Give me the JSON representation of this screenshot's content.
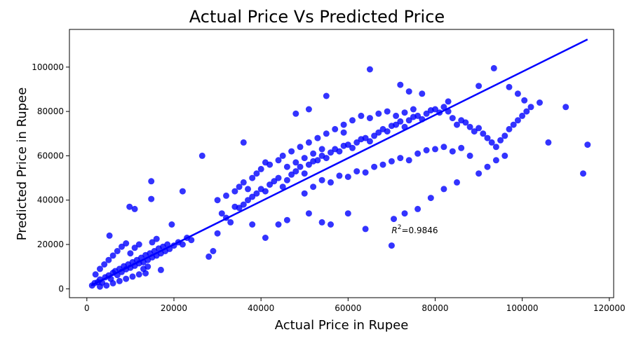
{
  "chart_data": {
    "type": "scatter",
    "title": "Actual Price  Vs  Predicted Price",
    "xlabel": "Actual Price in Rupee",
    "ylabel": "Predicted Price in Rupee",
    "xlim": [
      -4000,
      121000
    ],
    "ylim": [
      -4000,
      117000
    ],
    "xticks": [
      0,
      20000,
      40000,
      60000,
      80000,
      100000,
      120000
    ],
    "yticks": [
      0,
      20000,
      40000,
      60000,
      80000,
      100000
    ],
    "xtick_labels": [
      "0",
      "20000",
      "40000",
      "60000",
      "80000",
      "100000",
      "120000"
    ],
    "ytick_labels": [
      "0",
      "20000",
      "40000",
      "60000",
      "80000",
      "100000"
    ],
    "grid": false,
    "color": "#0000ff",
    "fit_line": {
      "x": [
        1000,
        115000
      ],
      "y": [
        1500,
        112500
      ]
    },
    "annotation": {
      "label_prefix": "R",
      "label_sup": "2",
      "label_suffix": "=0.9846",
      "x": 70000,
      "y": 25000
    },
    "points": [
      [
        1200,
        1500
      ],
      [
        1800,
        2600
      ],
      [
        2500,
        3000
      ],
      [
        3000,
        4200
      ],
      [
        3500,
        2800
      ],
      [
        4200,
        5200
      ],
      [
        5000,
        6000
      ],
      [
        5500,
        4500
      ],
      [
        6000,
        7200
      ],
      [
        6500,
        8000
      ],
      [
        7000,
        6200
      ],
      [
        7500,
        9000
      ],
      [
        8000,
        7600
      ],
      [
        8500,
        10200
      ],
      [
        9000,
        8800
      ],
      [
        9500,
        11000
      ],
      [
        10000,
        9500
      ],
      [
        10500,
        12000
      ],
      [
        11000,
        10400
      ],
      [
        11500,
        13000
      ],
      [
        12000,
        11500
      ],
      [
        12500,
        14000
      ],
      [
        13000,
        12000
      ],
      [
        13500,
        15200
      ],
      [
        14000,
        13000
      ],
      [
        14500,
        16000
      ],
      [
        15000,
        14200
      ],
      [
        15500,
        17000
      ],
      [
        16000,
        15000
      ],
      [
        16500,
        18200
      ],
      [
        17000,
        16000
      ],
      [
        17500,
        19000
      ],
      [
        18000,
        17000
      ],
      [
        18500,
        20000
      ],
      [
        19000,
        18000
      ],
      [
        20000,
        19500
      ],
      [
        21000,
        21000
      ],
      [
        22000,
        20000
      ],
      [
        23000,
        23000
      ],
      [
        24000,
        22000
      ],
      [
        2000,
        6500
      ],
      [
        3000,
        9000
      ],
      [
        4000,
        11000
      ],
      [
        5000,
        13000
      ],
      [
        6000,
        15000
      ],
      [
        7000,
        17000
      ],
      [
        8000,
        19000
      ],
      [
        9000,
        20500
      ],
      [
        10000,
        16000
      ],
      [
        11000,
        18500
      ],
      [
        12000,
        20000
      ],
      [
        13000,
        9000
      ],
      [
        14000,
        10000
      ],
      [
        15000,
        21000
      ],
      [
        16000,
        22500
      ],
      [
        17000,
        8500
      ],
      [
        3000,
        1000
      ],
      [
        4500,
        1500
      ],
      [
        6000,
        2500
      ],
      [
        7500,
        3500
      ],
      [
        9000,
        4500
      ],
      [
        10500,
        5500
      ],
      [
        12000,
        6500
      ],
      [
        13500,
        7000
      ],
      [
        5200,
        24000
      ],
      [
        9800,
        37000
      ],
      [
        11000,
        36000
      ],
      [
        14800,
        48500
      ],
      [
        14800,
        40500
      ],
      [
        19500,
        29000
      ],
      [
        26500,
        60000
      ],
      [
        22000,
        44000
      ],
      [
        28000,
        14500
      ],
      [
        29000,
        17000
      ],
      [
        30000,
        25000
      ],
      [
        31000,
        34000
      ],
      [
        32000,
        32000
      ],
      [
        33000,
        30000
      ],
      [
        34000,
        37000
      ],
      [
        35000,
        36500
      ],
      [
        36000,
        38000
      ],
      [
        37000,
        40000
      ],
      [
        38000,
        41500
      ],
      [
        39000,
        43000
      ],
      [
        40000,
        45000
      ],
      [
        41000,
        44000
      ],
      [
        42000,
        47000
      ],
      [
        43000,
        48500
      ],
      [
        44000,
        50000
      ],
      [
        45000,
        46000
      ],
      [
        46000,
        49000
      ],
      [
        47000,
        51500
      ],
      [
        48000,
        53000
      ],
      [
        49000,
        55000
      ],
      [
        50000,
        52000
      ],
      [
        51000,
        56000
      ],
      [
        52000,
        57500
      ],
      [
        53000,
        58000
      ],
      [
        54000,
        60000
      ],
      [
        55000,
        59000
      ],
      [
        56000,
        61500
      ],
      [
        57000,
        63000
      ],
      [
        58000,
        62000
      ],
      [
        59000,
        64500
      ],
      [
        60000,
        65000
      ],
      [
        61000,
        63500
      ],
      [
        62000,
        66000
      ],
      [
        63000,
        67500
      ],
      [
        64000,
        68000
      ],
      [
        65000,
        66500
      ],
      [
        66000,
        69000
      ],
      [
        67000,
        70500
      ],
      [
        68000,
        72000
      ],
      [
        69000,
        71000
      ],
      [
        70000,
        73500
      ],
      [
        71000,
        74000
      ],
      [
        72000,
        75500
      ],
      [
        73000,
        73000
      ],
      [
        74000,
        76000
      ],
      [
        75000,
        77500
      ],
      [
        76000,
        78000
      ],
      [
        77000,
        76500
      ],
      [
        78000,
        79000
      ],
      [
        79000,
        80500
      ],
      [
        80000,
        81000
      ],
      [
        81000,
        79500
      ],
      [
        82000,
        82000
      ],
      [
        83000,
        80000
      ],
      [
        84000,
        77000
      ],
      [
        85000,
        74000
      ],
      [
        86000,
        76000
      ],
      [
        87000,
        75000
      ],
      [
        88000,
        73000
      ],
      [
        89000,
        71000
      ],
      [
        90000,
        72500
      ],
      [
        91000,
        70000
      ],
      [
        92000,
        68000
      ],
      [
        93000,
        66000
      ],
      [
        94000,
        64000
      ],
      [
        95000,
        67000
      ],
      [
        96000,
        69000
      ],
      [
        97000,
        72000
      ],
      [
        98000,
        74000
      ],
      [
        99000,
        76000
      ],
      [
        100000,
        78000
      ],
      [
        101000,
        80000
      ],
      [
        102000,
        82000
      ],
      [
        104000,
        84000
      ],
      [
        106000,
        66000
      ],
      [
        110000,
        82000
      ],
      [
        115000,
        65000
      ],
      [
        114000,
        52000
      ],
      [
        36000,
        66000
      ],
      [
        41000,
        57000
      ],
      [
        48000,
        79000
      ],
      [
        51000,
        81000
      ],
      [
        55000,
        87000
      ],
      [
        59000,
        70500
      ],
      [
        65000,
        99000
      ],
      [
        72000,
        92000
      ],
      [
        74000,
        89000
      ],
      [
        77000,
        88000
      ],
      [
        83000,
        84500
      ],
      [
        90000,
        91500
      ],
      [
        93500,
        99500
      ],
      [
        97000,
        91000
      ],
      [
        99000,
        88000
      ],
      [
        100500,
        85000
      ],
      [
        38000,
        29000
      ],
      [
        41000,
        23000
      ],
      [
        44000,
        29000
      ],
      [
        46000,
        31000
      ],
      [
        51000,
        34000
      ],
      [
        54000,
        30000
      ],
      [
        56000,
        29000
      ],
      [
        60000,
        34000
      ],
      [
        64000,
        27000
      ],
      [
        70000,
        19500
      ],
      [
        70500,
        31500
      ],
      [
        73000,
        34000
      ],
      [
        76000,
        36000
      ],
      [
        79000,
        41000
      ],
      [
        82000,
        45000
      ],
      [
        85000,
        48000
      ],
      [
        50000,
        43000
      ],
      [
        52000,
        46000
      ],
      [
        54000,
        49000
      ],
      [
        56000,
        48000
      ],
      [
        58000,
        51000
      ],
      [
        60000,
        50500
      ],
      [
        62000,
        53000
      ],
      [
        64000,
        52500
      ],
      [
        66000,
        55000
      ],
      [
        68000,
        56000
      ],
      [
        70000,
        57500
      ],
      [
        72000,
        59000
      ],
      [
        74000,
        58000
      ],
      [
        76000,
        61000
      ],
      [
        78000,
        62500
      ],
      [
        80000,
        63000
      ],
      [
        82000,
        64000
      ],
      [
        84000,
        62000
      ],
      [
        86000,
        63500
      ],
      [
        88000,
        60000
      ],
      [
        90000,
        52000
      ],
      [
        92000,
        55000
      ],
      [
        94000,
        58000
      ],
      [
        96000,
        60000
      ],
      [
        45000,
        60000
      ],
      [
        47000,
        62000
      ],
      [
        49000,
        64000
      ],
      [
        51000,
        66000
      ],
      [
        53000,
        68000
      ],
      [
        55000,
        70000
      ],
      [
        57000,
        72000
      ],
      [
        59000,
        74000
      ],
      [
        61000,
        76000
      ],
      [
        63000,
        78000
      ],
      [
        65000,
        77000
      ],
      [
        67000,
        79000
      ],
      [
        69000,
        80000
      ],
      [
        71000,
        78000
      ],
      [
        73000,
        79500
      ],
      [
        75000,
        81000
      ],
      [
        30000,
        40000
      ],
      [
        32000,
        42000
      ],
      [
        34000,
        44000
      ],
      [
        35000,
        46000
      ],
      [
        36000,
        48000
      ],
      [
        37000,
        45000
      ],
      [
        38000,
        50000
      ],
      [
        39000,
        52000
      ],
      [
        40000,
        54000
      ],
      [
        42000,
        56000
      ],
      [
        44000,
        58000
      ],
      [
        46000,
        55000
      ],
      [
        48000,
        57000
      ],
      [
        50000,
        59000
      ],
      [
        52000,
        61000
      ],
      [
        54000,
        63000
      ]
    ]
  }
}
